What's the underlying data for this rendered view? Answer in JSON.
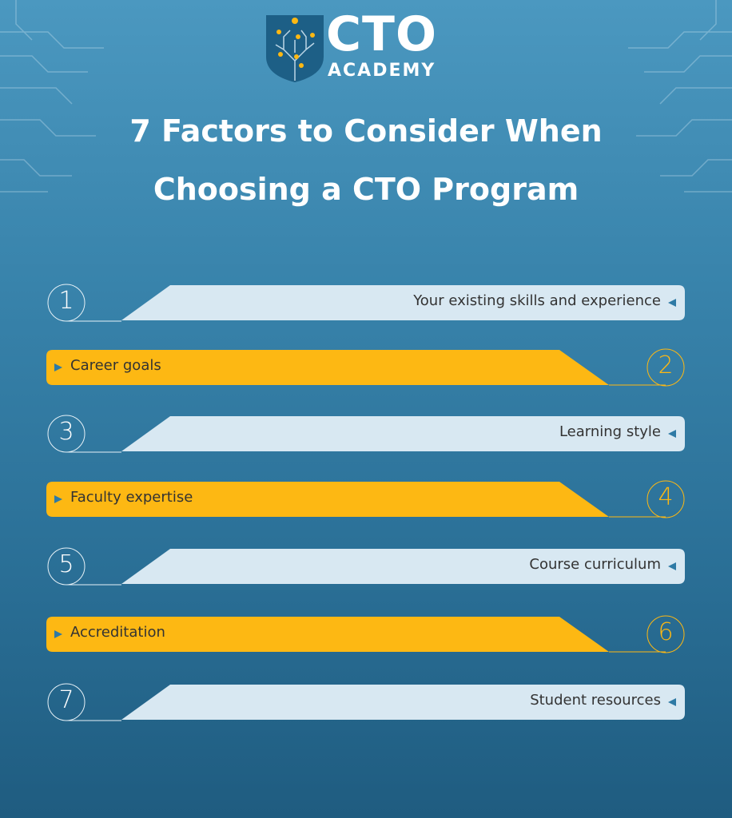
{
  "logo": {
    "line1": "CTO",
    "line2": "ACADEMY"
  },
  "title": {
    "line1": "7 Factors to Consider When",
    "line2": "Choosing a CTO Program"
  },
  "colors": {
    "light_bar": "#d8e8f2",
    "yellow_bar": "#fdb813",
    "text": "#333333",
    "arrow": "#2e7aa5"
  },
  "factors": [
    {
      "number": "1",
      "label": "Your existing skills and experience",
      "style": "light"
    },
    {
      "number": "2",
      "label": "Career goals",
      "style": "yellow"
    },
    {
      "number": "3",
      "label": "Learning style",
      "style": "light"
    },
    {
      "number": "4",
      "label": "Faculty expertise",
      "style": "yellow"
    },
    {
      "number": "5",
      "label": "Course curriculum",
      "style": "light"
    },
    {
      "number": "6",
      "label": "Accreditation",
      "style": "yellow"
    },
    {
      "number": "7",
      "label": "Student resources",
      "style": "light"
    }
  ]
}
